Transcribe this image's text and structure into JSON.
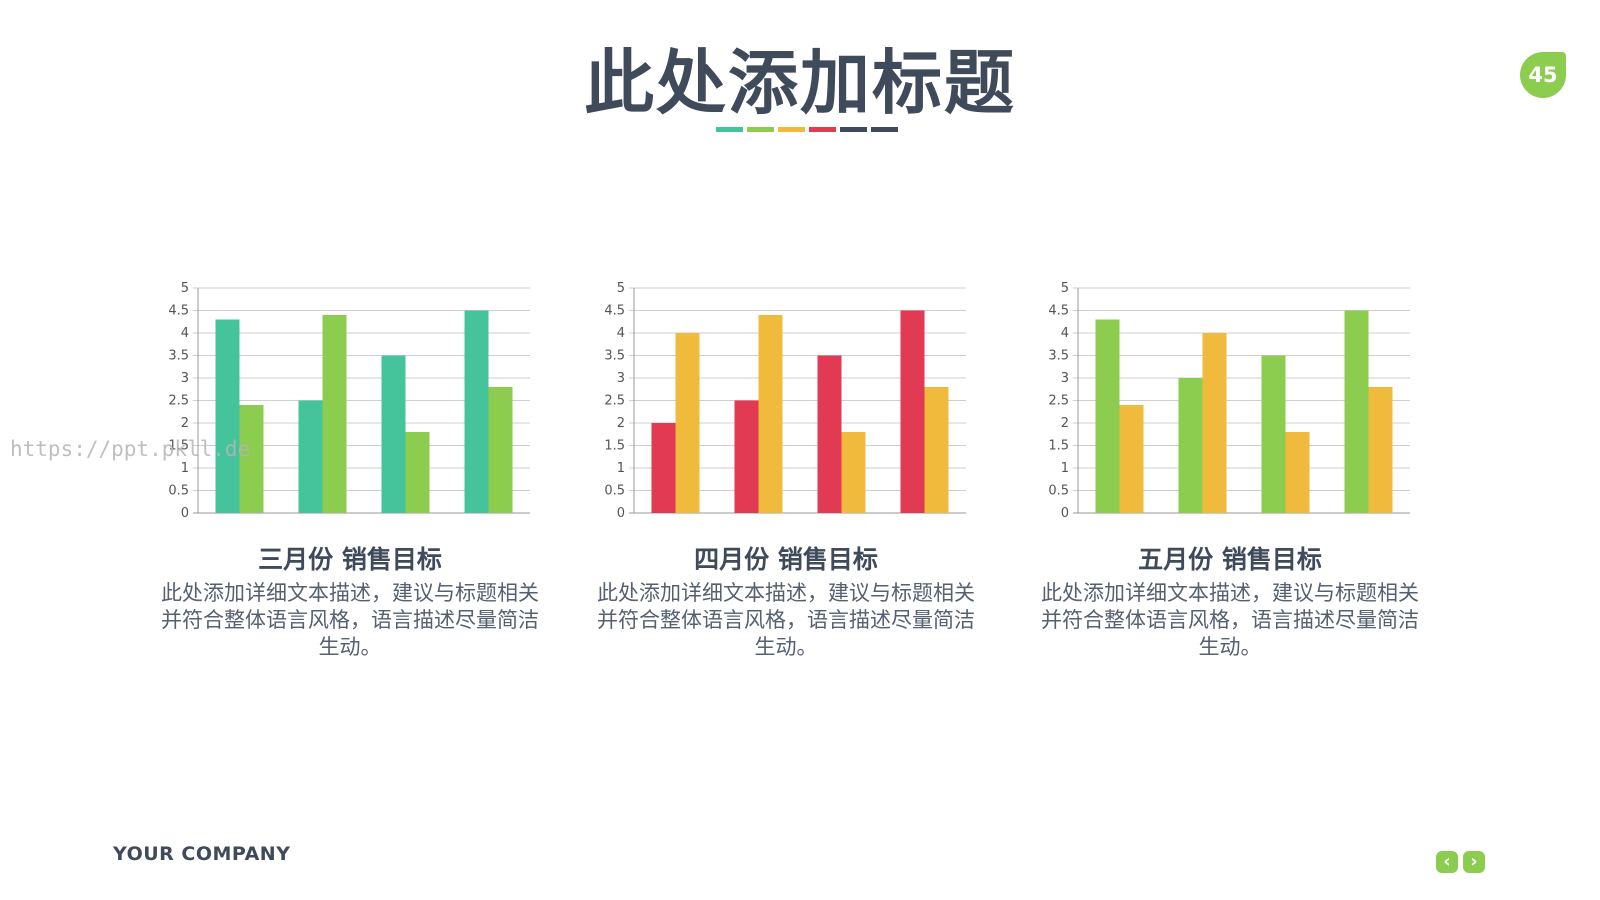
{
  "header": {
    "title": "此处添加标题",
    "accent_bar_colors": [
      "#45c39b",
      "#8ccc4f",
      "#f0bb3c",
      "#e23a52",
      "#3f4a5a",
      "#3f4a5a"
    ]
  },
  "page_number": "45",
  "watermark": "https://ppt.pkll.de",
  "footer": {
    "company": "YOUR COMPANY",
    "prev_icon": "chevron-left-icon",
    "next_icon": "chevron-right-icon",
    "prev_glyph": "‹",
    "next_glyph": "›",
    "nav_color": "#8ccc4f"
  },
  "charts": [
    {
      "title": "三月份 销售目标",
      "description": "此处添加详细文本描述，建议与标题相关并符合整体语言风格，语言描述尽量简洁生动。"
    },
    {
      "title": "四月份 销售目标",
      "description": "此处添加详细文本描述，建议与标题相关并符合整体语言风格，语言描述尽量简洁生动。"
    },
    {
      "title": "五月份 销售目标",
      "description": "此处添加详细文本描述，建议与标题相关并符合整体语言风格，语言描述尽量简洁生动。"
    }
  ],
  "chart_data": [
    {
      "type": "bar",
      "title": "三月份 销售目标",
      "categories": [
        "",
        "",
        "",
        ""
      ],
      "ylim": [
        0,
        5
      ],
      "yticks": [
        "0",
        "0.5",
        "1",
        "1.5",
        "2",
        "2.5",
        "3",
        "3.5",
        "4",
        "4.5",
        "5"
      ],
      "grid": true,
      "legend": "none",
      "series": [
        {
          "values": [
            4.3,
            2.5,
            3.5,
            4.5
          ],
          "color": "#45c39b"
        },
        {
          "values": [
            2.4,
            4.4,
            1.8,
            2.8
          ],
          "color": "#8ccc4f"
        }
      ]
    },
    {
      "type": "bar",
      "title": "四月份 销售目标",
      "categories": [
        "",
        "",
        "",
        ""
      ],
      "ylim": [
        0,
        5
      ],
      "yticks": [
        "0",
        "0.5",
        "1",
        "1.5",
        "2",
        "2.5",
        "3",
        "3.5",
        "4",
        "4.5",
        "5"
      ],
      "grid": true,
      "legend": "none",
      "series": [
        {
          "values": [
            2.0,
            2.5,
            3.5,
            4.5
          ],
          "color": "#e23a52"
        },
        {
          "values": [
            4.0,
            4.4,
            1.8,
            2.8
          ],
          "color": "#f0bb3c"
        }
      ]
    },
    {
      "type": "bar",
      "title": "五月份 销售目标",
      "categories": [
        "",
        "",
        "",
        ""
      ],
      "ylim": [
        0,
        5
      ],
      "yticks": [
        "0",
        "0.5",
        "1",
        "1.5",
        "2",
        "2.5",
        "3",
        "3.5",
        "4",
        "4.5",
        "5"
      ],
      "grid": true,
      "legend": "none",
      "series": [
        {
          "values": [
            4.3,
            3.0,
            3.5,
            4.5
          ],
          "color": "#8ccc4f"
        },
        {
          "values": [
            2.4,
            4.0,
            1.8,
            2.8
          ],
          "color": "#f0bb3c"
        }
      ]
    }
  ]
}
